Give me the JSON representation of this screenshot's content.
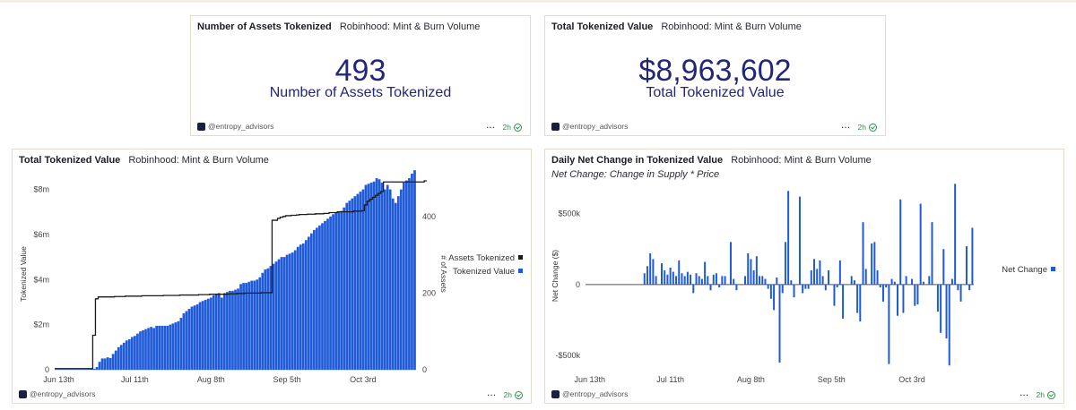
{
  "cards": {
    "assets_count": {
      "title": "Number of Assets Tokenized",
      "subtitle": "Robinhood: Mint & Burn Volume",
      "value": "493",
      "label": "Number of Assets Tokenized",
      "author": "@entropy_advisors",
      "age": "2h"
    },
    "total_value": {
      "title": "Total Tokenized Value",
      "subtitle": "Robinhood: Mint & Burn Volume",
      "value": "$8,963,602",
      "label": "Total Tokenized Value",
      "author": "@entropy_advisors",
      "age": "2h"
    },
    "value_chart": {
      "title": "Total Tokenized Value",
      "subtitle": "Robinhood: Mint & Burn Volume",
      "author": "@entropy_advisors",
      "age": "2h"
    },
    "net_change_chart": {
      "title": "Daily Net Change in Tokenized Value",
      "subtitle": "Robinhood: Mint & Burn Volume",
      "note": "Net Change: Change in Supply * Price",
      "author": "@entropy_advisors",
      "age": "2h"
    }
  },
  "more_icon": "ellipsis-icon",
  "colors": {
    "bar": "#1f5bd8",
    "line": "#1a1a1a",
    "number": "#24267a",
    "status": "#2f8c4a"
  },
  "chart_data": [
    {
      "type": "bar",
      "title": "Total Tokenized Value",
      "x_tick_labels": [
        "Jun 13th",
        "Jul 11th",
        "Aug 8th",
        "Sep 5th",
        "Oct 3rd"
      ],
      "first_tick_day_index": 1,
      "tick_interval_days": 28,
      "ylabel": "Tokenized Value",
      "y2label": "# of Assets",
      "y_ticks": [
        "0",
        "$2m",
        "$4m",
        "$6m",
        "$8m"
      ],
      "ylim": [
        0,
        8.5
      ],
      "y2_ticks": [
        "0",
        "200",
        "400"
      ],
      "y2lim": [
        0,
        500
      ],
      "legend": {
        "placement": "right",
        "entries": [
          "Assets Tokenized",
          "Tokenized Value"
        ]
      },
      "series": [
        {
          "name": "Tokenized Value",
          "unit": "$m",
          "values": [
            0.02,
            0.02,
            0.02,
            0.02,
            0.02,
            0.02,
            0.02,
            0.02,
            0.02,
            0.02,
            0.02,
            0.02,
            0.03,
            0.04,
            0.04,
            0.12,
            0.35,
            0.5,
            0.5,
            0.55,
            0.52,
            0.7,
            0.85,
            1.0,
            1.1,
            1.2,
            1.3,
            1.35,
            1.45,
            1.5,
            1.6,
            1.7,
            1.75,
            1.8,
            1.85,
            1.9,
            1.85,
            1.95,
            1.95,
            1.95,
            1.95,
            1.95,
            2.0,
            2.05,
            2.1,
            2.15,
            2.3,
            2.5,
            2.6,
            2.7,
            2.8,
            2.85,
            2.9,
            3.0,
            3.05,
            3.1,
            3.15,
            3.2,
            3.3,
            3.35,
            3.4,
            3.2,
            3.4,
            3.45,
            3.5,
            3.5,
            3.55,
            3.6,
            3.8,
            3.85,
            3.85,
            3.9,
            3.95,
            3.95,
            4.0,
            4.1,
            4.3,
            4.45,
            4.5,
            4.6,
            4.7,
            4.8,
            4.9,
            5.0,
            5.0,
            5.1,
            5.15,
            5.2,
            5.3,
            5.45,
            5.55,
            5.6,
            5.75,
            5.9,
            6.05,
            6.2,
            6.3,
            6.4,
            6.5,
            6.6,
            6.7,
            6.8,
            6.9,
            6.95,
            7.0,
            7.05,
            7.2,
            7.4,
            7.5,
            7.6,
            7.7,
            7.8,
            7.9,
            8.0,
            8.2,
            8.25,
            8.3,
            8.35,
            8.5,
            8.45,
            8.3,
            8.0,
            8.2,
            8.0,
            7.6,
            7.4,
            7.7,
            8.0,
            8.3,
            8.4,
            8.5,
            8.7,
            8.85
          ]
        },
        {
          "name": "Assets Tokenized",
          "type": "line",
          "values": [
            3,
            3,
            3,
            3,
            3,
            3,
            3,
            3,
            3,
            3,
            3,
            3,
            3,
            3,
            90,
            185,
            190,
            190,
            190,
            190,
            190,
            190,
            191,
            191,
            191,
            191,
            192,
            192,
            192,
            192,
            192,
            192,
            193,
            193,
            193,
            193,
            193,
            193,
            193,
            193,
            194,
            194,
            194,
            194,
            194,
            194,
            195,
            195,
            195,
            195,
            195,
            195,
            195,
            196,
            196,
            196,
            196,
            197,
            197,
            197,
            197,
            197,
            197,
            197,
            198,
            198,
            198,
            199,
            199,
            199,
            200,
            200,
            200,
            200,
            200,
            200,
            201,
            201,
            201,
            201,
            390,
            390,
            395,
            398,
            400,
            402,
            402,
            403,
            403,
            404,
            405,
            405,
            405,
            406,
            406,
            406,
            407,
            407,
            407,
            408,
            408,
            410,
            410,
            410,
            412,
            412,
            412,
            412,
            412,
            412,
            414,
            414,
            414,
            415,
            430,
            440,
            445,
            450,
            455,
            460,
            465,
            490,
            490,
            490,
            490,
            490,
            490,
            490,
            490,
            490,
            490,
            490,
            490,
            490,
            490,
            490,
            493
          ]
        }
      ]
    },
    {
      "type": "bar",
      "title": "Daily Net Change in Tokenized Value",
      "x_tick_labels": [
        "Jun 13th",
        "Jul 11th",
        "Aug 8th",
        "Sep 5th",
        "Oct 3rd"
      ],
      "first_tick_day_index": 1,
      "tick_interval_days": 28,
      "ylabel": "Net Change ($)",
      "y_ticks": [
        "-$500k",
        "0",
        "$500k"
      ],
      "ylim": [
        -600,
        750
      ],
      "legend": {
        "placement": "right",
        "entries": [
          "Net Change"
        ]
      },
      "series": [
        {
          "name": "Net Change",
          "unit": "$k",
          "values": [
            0,
            0,
            0,
            0,
            0,
            0,
            0,
            0,
            0,
            0,
            0,
            0,
            0,
            0,
            0,
            0,
            0,
            0,
            0,
            0,
            80,
            130,
            220,
            180,
            60,
            0,
            150,
            100,
            70,
            120,
            90,
            60,
            170,
            80,
            60,
            90,
            70,
            -60,
            80,
            60,
            40,
            160,
            60,
            -40,
            70,
            80,
            -20,
            60,
            60,
            0,
            300,
            40,
            -40,
            0,
            0,
            60,
            220,
            180,
            100,
            200,
            60,
            60,
            40,
            -30,
            -100,
            -180,
            50,
            -550,
            -60,
            300,
            660,
            30,
            -90,
            0,
            620,
            -60,
            -30,
            -30,
            100,
            180,
            110,
            170,
            60,
            -40,
            100,
            0,
            -150,
            -20,
            170,
            -240,
            0,
            0,
            60,
            30,
            -200,
            -260,
            440,
            110,
            0,
            290,
            300,
            100,
            -20,
            -120,
            -20,
            -560,
            40,
            20,
            -220,
            600,
            -200,
            60,
            0,
            40,
            -150,
            -140,
            570,
            20,
            0,
            60,
            440,
            0,
            -190,
            -340,
            250,
            -380,
            -570,
            40,
            710,
            -40,
            -120,
            0,
            270,
            -40,
            400
          ]
        }
      ]
    }
  ]
}
